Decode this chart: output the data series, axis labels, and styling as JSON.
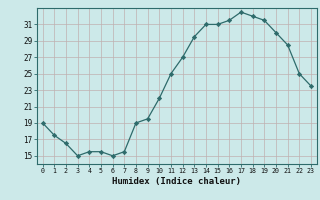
{
  "x": [
    0,
    1,
    2,
    3,
    4,
    5,
    6,
    7,
    8,
    9,
    10,
    11,
    12,
    13,
    14,
    15,
    16,
    17,
    18,
    19,
    20,
    21,
    22,
    23
  ],
  "y": [
    19,
    17.5,
    16.5,
    15,
    15.5,
    15.5,
    15,
    15.5,
    19,
    19.5,
    22,
    25,
    27,
    29.5,
    31,
    31,
    31.5,
    32.5,
    32,
    31.5,
    30,
    28.5,
    25,
    23.5
  ],
  "xlabel": "Humidex (Indice chaleur)",
  "xlim": [
    -0.5,
    23.5
  ],
  "ylim": [
    14,
    33
  ],
  "yticks": [
    15,
    17,
    19,
    21,
    23,
    25,
    27,
    29,
    31
  ],
  "xticks": [
    0,
    1,
    2,
    3,
    4,
    5,
    6,
    7,
    8,
    9,
    10,
    11,
    12,
    13,
    14,
    15,
    16,
    17,
    18,
    19,
    20,
    21,
    22,
    23
  ],
  "line_color": "#2e6b6b",
  "marker": "D",
  "marker_size": 2.2,
  "bg_color": "#cce9e9",
  "grid_color_major": "#c0b0b0",
  "grid_color_minor": "#e0c8c8",
  "fig_bg": "#cce9e9"
}
